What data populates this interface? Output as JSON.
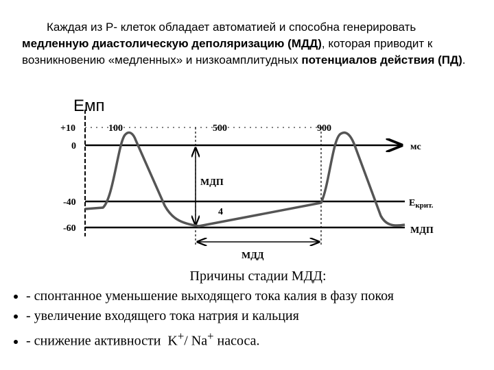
{
  "paragraph": {
    "lead": "Каждая из Р- клеток обладает автоматией и способна генерировать",
    "bold1": "медленную диастолическую деполяризацию (МДД)",
    "middle": ", которая приводит к возникновению «медленных» и низкоамплитудных",
    "bold2": "потенциалов действия (ПД)",
    "end": "."
  },
  "diagram": {
    "y_label": "Емп",
    "y_ticks": [
      "+10",
      "0",
      "-40",
      "-60"
    ],
    "x_ticks": [
      "100",
      "500",
      "900"
    ],
    "x_unit": "мс",
    "threshold_label": "Е",
    "threshold_sub": "крит.",
    "mdp_right": "МДП",
    "mdp_arrow": "МДП",
    "phase": "4",
    "mdd": "МДД"
  },
  "causes": {
    "title": "Причины стадии МДД:",
    "items": [
      "- спонтанное уменьшение выходящего тока калия в фазу покоя",
      "- увеличение входящего тока натрия и кальция"
    ],
    "last": {
      "before": "- снижение активности  K",
      "sup1": "+",
      "mid": "/ Na",
      "sup2": "+",
      "after": " насоса."
    }
  }
}
